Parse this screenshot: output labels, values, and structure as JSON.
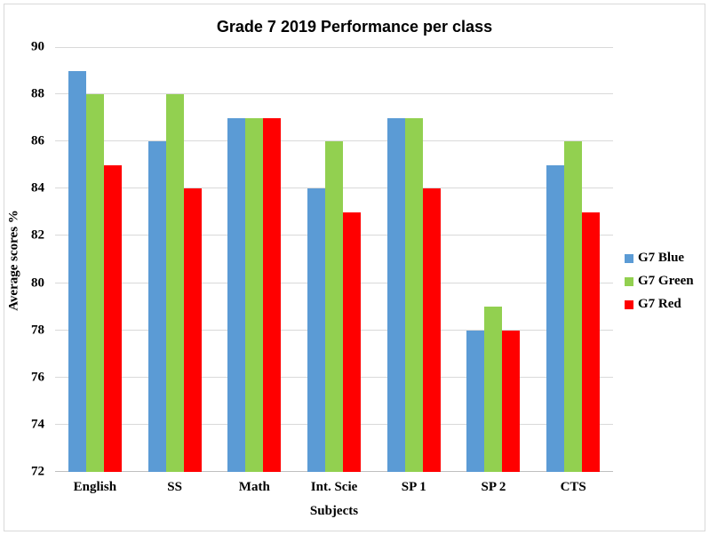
{
  "chart_data": {
    "type": "bar",
    "title": "Grade 7 2019 Performance per class",
    "xlabel": "Subjects",
    "ylabel": "Average scores %",
    "categories": [
      "English",
      "SS",
      "Math",
      "Int. Scie",
      "SP 1",
      "SP 2",
      "CTS"
    ],
    "series": [
      {
        "name": "G7 Blue",
        "color": "#5B9BD5",
        "values": [
          89,
          86,
          87,
          84,
          87,
          78,
          85
        ]
      },
      {
        "name": "G7 Green",
        "color": "#92D050",
        "values": [
          88,
          88,
          87,
          86,
          87,
          79,
          86
        ]
      },
      {
        "name": "G7 Red",
        "color": "#FF0000",
        "values": [
          85,
          84,
          87,
          83,
          84,
          78,
          83
        ]
      }
    ],
    "ylim": [
      72,
      90
    ],
    "ytick_step": 2,
    "grid": true,
    "legend_position": "right"
  },
  "colors": {
    "gridline": "#D9D9D9",
    "axis_line": "#BFBFBF",
    "text": "#000000",
    "frame_border": "#D9D9D9",
    "background": "#FFFFFF"
  }
}
